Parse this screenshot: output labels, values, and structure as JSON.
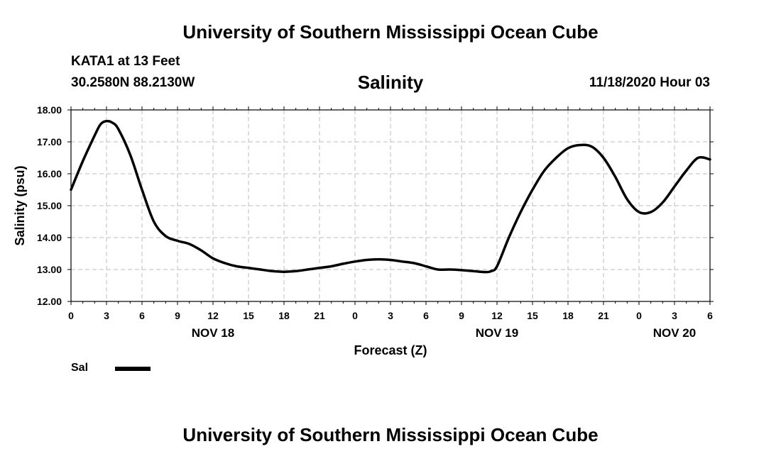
{
  "header": {
    "title": "University of Southern Mississippi Ocean Cube",
    "station": "KATA1 at 13 Feet",
    "coordinates": "30.2580N 88.2130W",
    "timestamp": "11/18/2020 Hour 03"
  },
  "footer": {
    "title": "University of Southern Mississippi Ocean Cube"
  },
  "legend": {
    "label": "Sal"
  },
  "chart_data": {
    "type": "line",
    "title": "Salinity",
    "xlabel": "Forecast (Z)",
    "ylabel": "Salinity (psu)",
    "ylim": [
      12.0,
      18.0
    ],
    "xlim": [
      0,
      54
    ],
    "grid": true,
    "y_ticks": [
      "12.00",
      "13.00",
      "14.00",
      "15.00",
      "16.00",
      "17.00",
      "18.00"
    ],
    "x_tick_labels": [
      "0",
      "3",
      "6",
      "9",
      "12",
      "15",
      "18",
      "21",
      "0",
      "3",
      "6",
      "9",
      "12",
      "15",
      "18",
      "21",
      "0",
      "3",
      "6"
    ],
    "date_labels": [
      {
        "label": "NOV 18",
        "hour": 12
      },
      {
        "label": "NOV 19",
        "hour": 36
      },
      {
        "label": "NOV 20",
        "hour": 51
      }
    ],
    "series": [
      {
        "name": "Sal",
        "x": [
          0,
          1,
          2,
          2.5,
          3,
          3.5,
          4,
          5,
          6,
          7,
          8,
          9,
          10,
          11,
          12,
          13,
          14,
          15,
          16,
          17,
          18,
          19,
          20,
          21,
          22,
          23,
          24,
          25,
          26,
          27,
          28,
          29,
          30,
          31,
          32,
          33,
          34,
          35,
          35.5,
          36,
          37,
          38,
          39,
          40,
          41,
          42,
          43,
          44,
          45,
          46,
          47,
          48,
          49,
          50,
          51,
          52,
          53,
          54
        ],
        "values": [
          15.5,
          16.4,
          17.2,
          17.55,
          17.65,
          17.6,
          17.4,
          16.6,
          15.5,
          14.5,
          14.05,
          13.9,
          13.8,
          13.6,
          13.35,
          13.2,
          13.1,
          13.05,
          13.0,
          12.95,
          12.93,
          12.95,
          13.0,
          13.05,
          13.1,
          13.18,
          13.25,
          13.3,
          13.32,
          13.3,
          13.25,
          13.2,
          13.1,
          13.0,
          13.0,
          12.98,
          12.95,
          12.92,
          12.95,
          13.1,
          14.0,
          14.8,
          15.5,
          16.1,
          16.5,
          16.8,
          16.9,
          16.85,
          16.5,
          15.9,
          15.2,
          14.8,
          14.8,
          15.1,
          15.6,
          16.1,
          16.5,
          16.45
        ]
      }
    ]
  }
}
